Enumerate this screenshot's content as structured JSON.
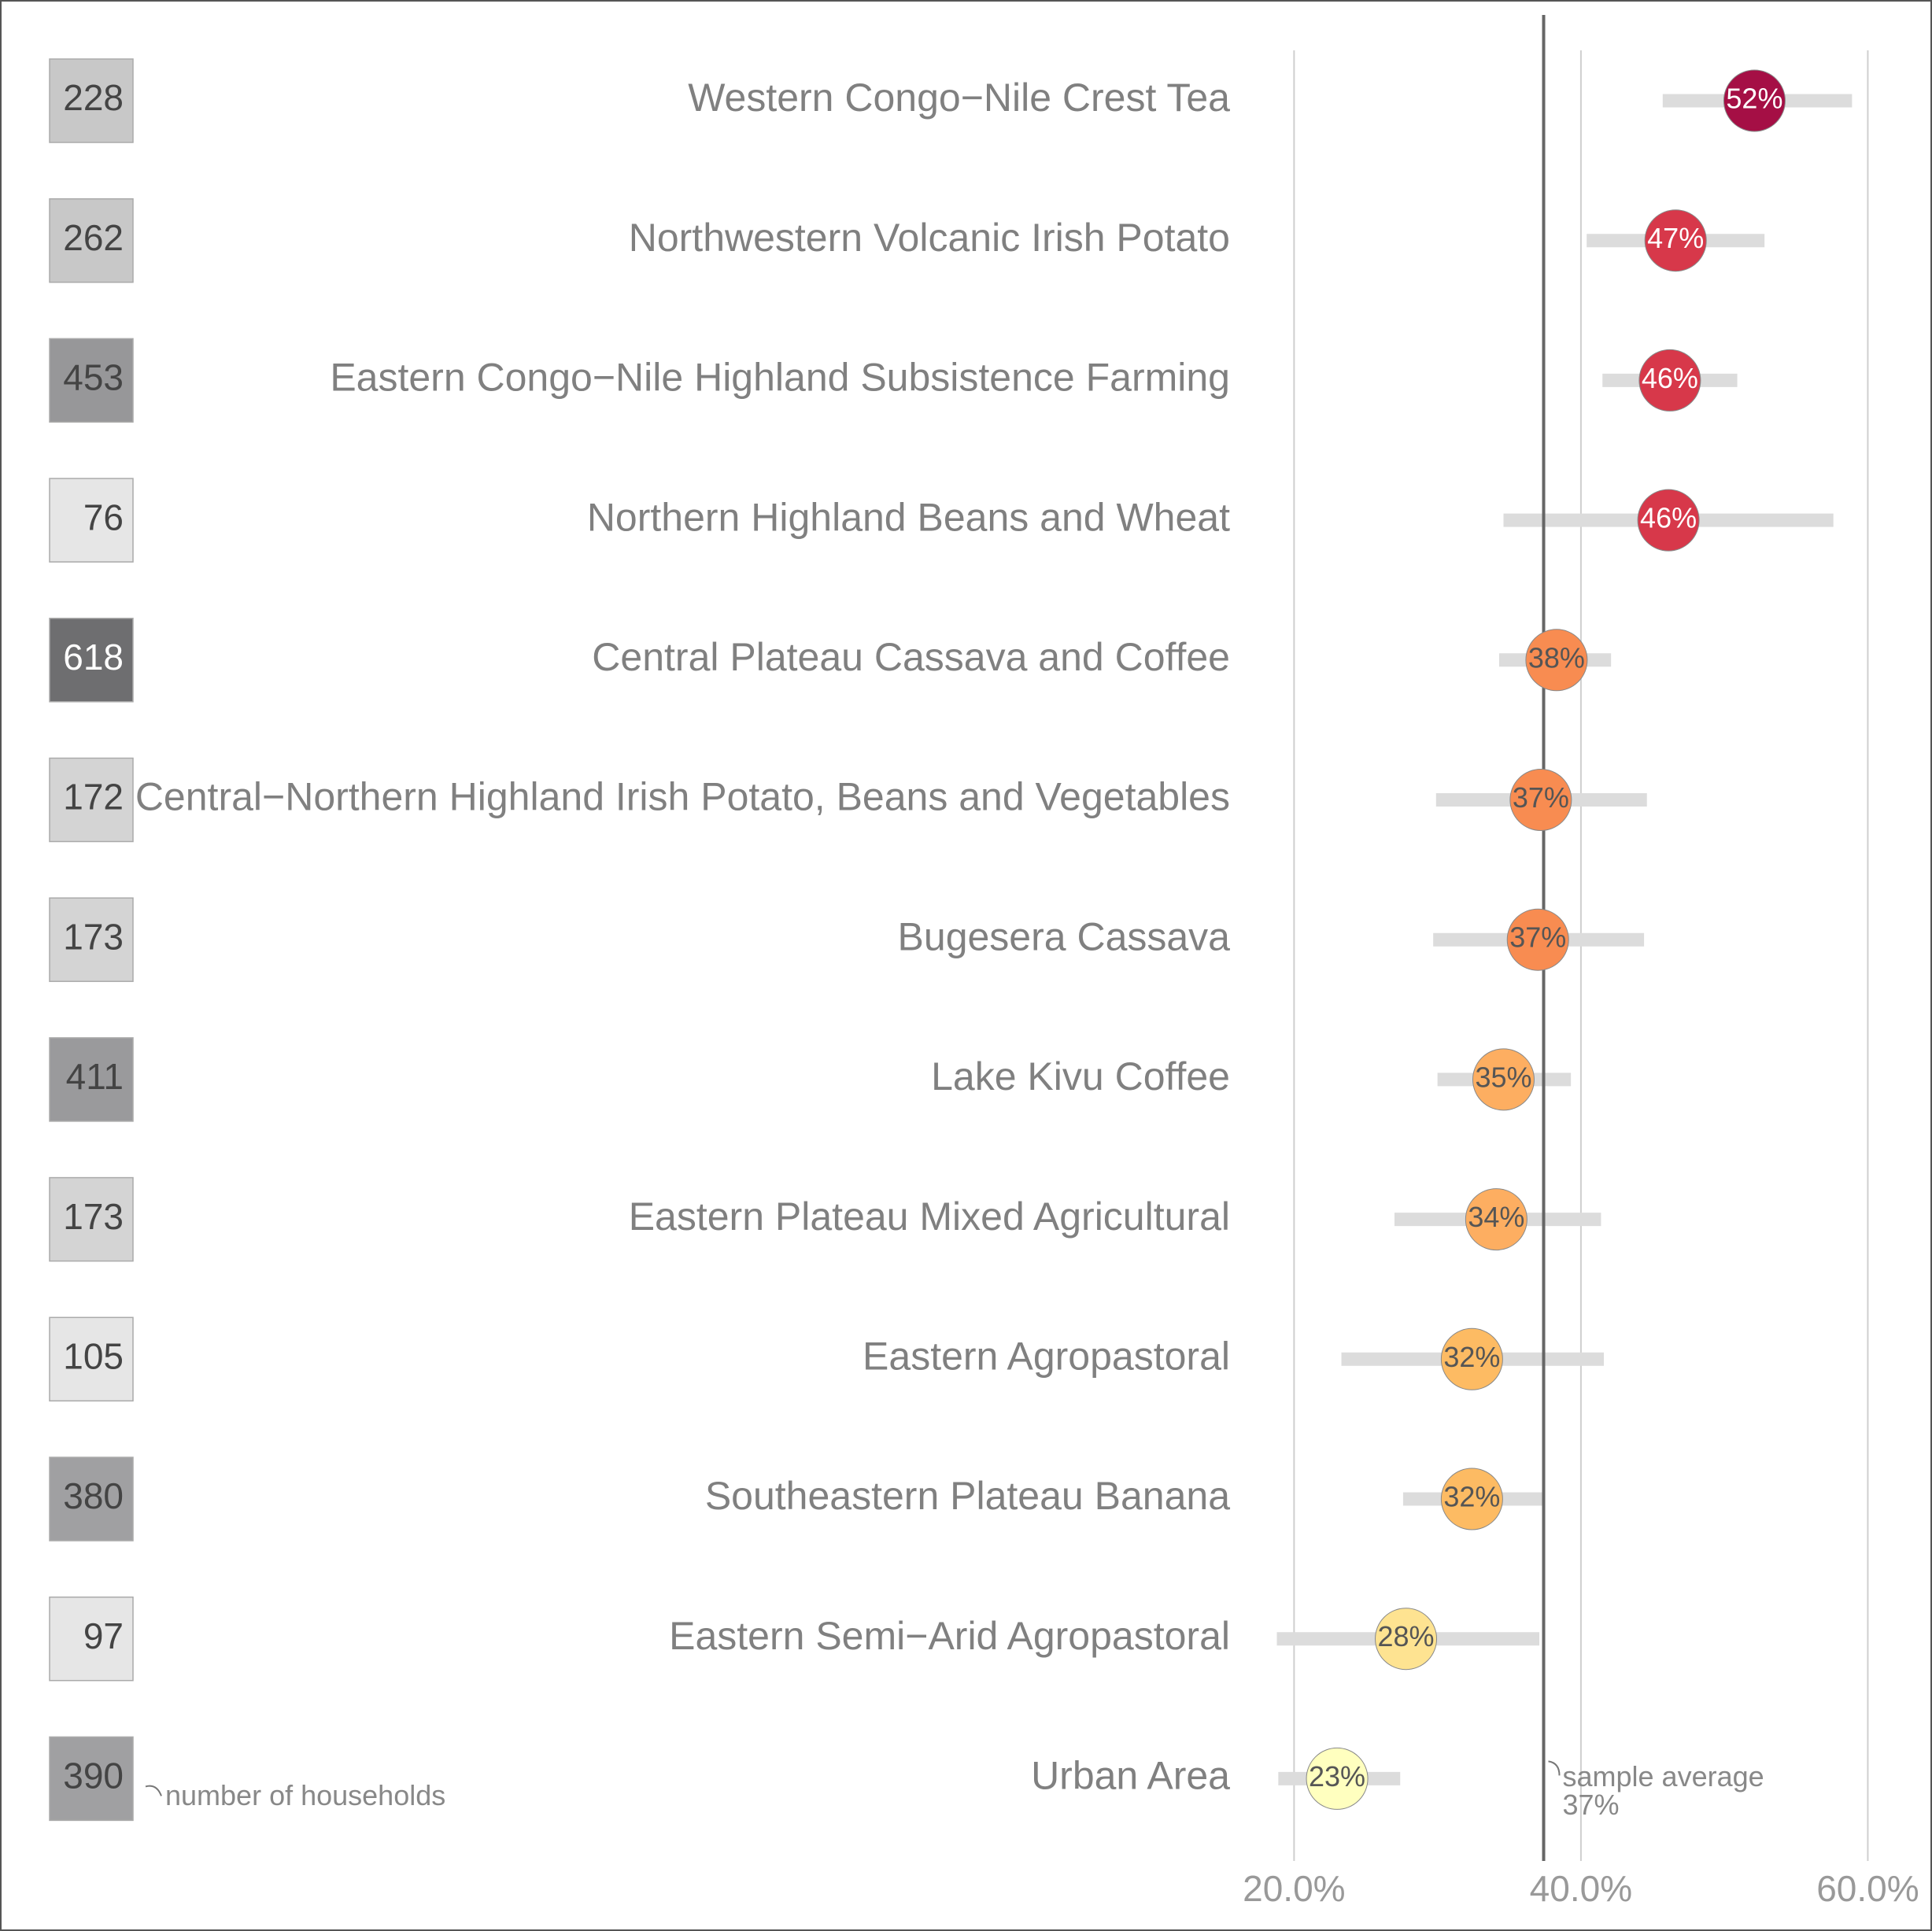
{
  "chart_data": {
    "type": "dot",
    "categories": [
      "Western Congo−Nile Crest Tea",
      "Northwestern Volcanic Irish Potato",
      "Eastern Congo−Nile Highland Subsistence Farming",
      "Northern Highland Beans and Wheat",
      "Central Plateau Cassava and Coffee",
      "Central−Northern Highland Irish Potato, Beans and Vegetables",
      "Bugesera Cassava",
      "Lake Kivu Coffee",
      "Eastern Plateau Mixed Agricultural",
      "Eastern Agropastoral",
      "Southeastern Plateau Banana",
      "Eastern Semi−Arid Agropastoral",
      "Urban Area"
    ],
    "values": [
      52.1,
      46.6,
      46.2,
      46.1,
      38.3,
      37.2,
      37.0,
      34.6,
      34.1,
      32.4,
      32.4,
      27.8,
      23.0
    ],
    "value_labels": [
      "52%",
      "47%",
      "46%",
      "46%",
      "38%",
      "37%",
      "37%",
      "35%",
      "34%",
      "32%",
      "32%",
      "28%",
      "23%"
    ],
    "lower": [
      45.7,
      40.4,
      41.5,
      34.6,
      34.3,
      29.9,
      29.7,
      30.0,
      27.0,
      23.3,
      27.6,
      18.8,
      18.9
    ],
    "upper": [
      58.9,
      52.8,
      50.9,
      57.6,
      42.1,
      44.6,
      44.4,
      39.3,
      41.4,
      41.6,
      37.3,
      37.1,
      27.4
    ],
    "colors": [
      "#a50f45",
      "#d7384a",
      "#d7384a",
      "#d7384a",
      "#f88c51",
      "#f88c51",
      "#f88c51",
      "#fdae61",
      "#fdae61",
      "#fdbb63",
      "#fdbb63",
      "#fee391",
      "#ffffbf"
    ],
    "households": [
      228,
      262,
      453,
      76,
      618,
      172,
      173,
      411,
      173,
      105,
      380,
      97,
      390
    ],
    "household_colors": [
      "#c8c8c8",
      "#c8c8c8",
      "#979799",
      "#e6e6e6",
      "#6e6e70",
      "#d4d4d4",
      "#d4d4d4",
      "#9a9a9c",
      "#d4d4d4",
      "#e6e6e6",
      "#a0a0a2",
      "#e6e6e6",
      "#a0a0a2"
    ],
    "households_note": "number of households",
    "sample_average": {
      "value": 37.4,
      "label": "sample average",
      "value_label": "37%"
    },
    "xlim": [
      15.7,
      62.5
    ],
    "xticks": [
      {
        "value": 20,
        "label": "20.0%"
      },
      {
        "value": 40,
        "label": "40.0%"
      },
      {
        "value": 60,
        "label": "60.0%"
      }
    ],
    "grid": true
  }
}
